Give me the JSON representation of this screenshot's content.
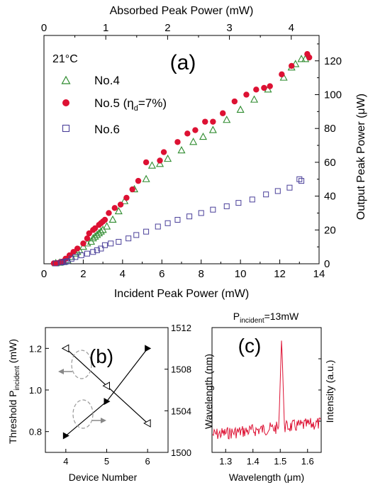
{
  "chart_data": [
    {
      "id": "a",
      "type": "scatter",
      "panel_label": "(a)",
      "annotation": "21°C",
      "xlabel": "Incident Peak Power (mW)",
      "xlim": [
        0,
        14
      ],
      "xticks": [
        0,
        2,
        4,
        6,
        8,
        10,
        12,
        14
      ],
      "top_xlabel": "Absorbed Peak Power (mW)",
      "top_xlim": [
        0,
        4.45
      ],
      "top_xticks": [
        0,
        1,
        2,
        3,
        4
      ],
      "ylabel": "Output Peak Power (μW)",
      "ylim": [
        0,
        135
      ],
      "yticks": [
        0,
        20,
        40,
        60,
        80,
        100,
        120
      ],
      "y_axis_side": "right",
      "legend_position": "top-left",
      "series": [
        {
          "name_main": "No.4",
          "name_sub": "",
          "name_tail": "",
          "marker": "open-triangle",
          "color": "#2e8b2e",
          "points": [
            [
              0.6,
              0.3
            ],
            [
              0.8,
              0.6
            ],
            [
              1.0,
              1.0
            ],
            [
              1.2,
              2
            ],
            [
              1.4,
              4
            ],
            [
              1.6,
              6
            ],
            [
              1.7,
              7
            ],
            [
              1.8,
              8
            ],
            [
              2.0,
              10
            ],
            [
              2.2,
              12
            ],
            [
              2.4,
              13
            ],
            [
              2.5,
              15
            ],
            [
              2.6,
              16
            ],
            [
              2.7,
              17
            ],
            [
              2.8,
              18
            ],
            [
              2.9,
              19
            ],
            [
              3.0,
              20
            ],
            [
              3.2,
              22
            ],
            [
              3.5,
              26
            ],
            [
              3.8,
              31
            ],
            [
              4.1,
              37
            ],
            [
              4.6,
              44
            ],
            [
              5.2,
              50
            ],
            [
              5.5,
              58
            ],
            [
              5.9,
              59
            ],
            [
              6.3,
              62
            ],
            [
              7.0,
              67
            ],
            [
              7.6,
              72
            ],
            [
              8.1,
              75
            ],
            [
              8.6,
              79
            ],
            [
              9.3,
              85
            ],
            [
              10.0,
              91
            ],
            [
              10.7,
              97
            ],
            [
              11.4,
              103
            ],
            [
              12.2,
              110
            ],
            [
              12.6,
              116
            ],
            [
              12.8,
              118
            ],
            [
              13.1,
              121
            ],
            [
              13.3,
              121
            ]
          ]
        },
        {
          "name_main": "No.5 (η",
          "name_sub": "d",
          "name_tail": "=7%)",
          "marker": "filled-circle",
          "color": "#dd1133",
          "points": [
            [
              0.5,
              0.3
            ],
            [
              0.65,
              0.4
            ],
            [
              0.8,
              0.8
            ],
            [
              0.9,
              1.2
            ],
            [
              1.0,
              1.5
            ],
            [
              1.1,
              3
            ],
            [
              1.3,
              5
            ],
            [
              1.5,
              7
            ],
            [
              1.7,
              9
            ],
            [
              2.0,
              12
            ],
            [
              2.2,
              15
            ],
            [
              2.3,
              18
            ],
            [
              2.5,
              20
            ],
            [
              2.6,
              21
            ],
            [
              2.8,
              23
            ],
            [
              2.9,
              24
            ],
            [
              3.0,
              25
            ],
            [
              3.1,
              26
            ],
            [
              3.3,
              30
            ],
            [
              3.6,
              33
            ],
            [
              3.9,
              35
            ],
            [
              4.2,
              39
            ],
            [
              4.5,
              44
            ],
            [
              4.8,
              49
            ],
            [
              5.2,
              60
            ],
            [
              5.9,
              61
            ],
            [
              6.1,
              66
            ],
            [
              6.8,
              72
            ],
            [
              7.3,
              77
            ],
            [
              7.7,
              79
            ],
            [
              8.2,
              84
            ],
            [
              8.6,
              84
            ],
            [
              9.1,
              89
            ],
            [
              9.7,
              96
            ],
            [
              10.3,
              100
            ],
            [
              10.8,
              103
            ],
            [
              11.2,
              104
            ],
            [
              11.5,
              105
            ],
            [
              12.1,
              112
            ],
            [
              12.6,
              117
            ],
            [
              13.4,
              124
            ],
            [
              13.5,
              122
            ]
          ]
        },
        {
          "name_main": "No.6",
          "name_sub": "",
          "name_tail": "",
          "marker": "open-square",
          "color": "#4a3f99",
          "points": [
            [
              0.6,
              0.2
            ],
            [
              0.9,
              0.8
            ],
            [
              1.0,
              1.0
            ],
            [
              1.1,
              1.2
            ],
            [
              1.2,
              1.5
            ],
            [
              1.4,
              3
            ],
            [
              1.6,
              4
            ],
            [
              1.9,
              5
            ],
            [
              2.2,
              6
            ],
            [
              2.5,
              7
            ],
            [
              2.7,
              8
            ],
            [
              2.9,
              9
            ],
            [
              3.1,
              11
            ],
            [
              3.4,
              12
            ],
            [
              3.8,
              13
            ],
            [
              4.3,
              15
            ],
            [
              4.7,
              17
            ],
            [
              5.2,
              19
            ],
            [
              5.8,
              22
            ],
            [
              6.3,
              24
            ],
            [
              6.8,
              26
            ],
            [
              7.4,
              28
            ],
            [
              8.0,
              30
            ],
            [
              8.6,
              32
            ],
            [
              9.3,
              34
            ],
            [
              9.9,
              36
            ],
            [
              10.6,
              38
            ],
            [
              11.3,
              41
            ],
            [
              11.9,
              43
            ],
            [
              12.5,
              45
            ],
            [
              13.0,
              50
            ],
            [
              13.1,
              49
            ]
          ]
        }
      ]
    },
    {
      "id": "b",
      "type": "line",
      "panel_label": "(b)",
      "xlabel": "Device Number",
      "xlim": [
        3.5,
        6.5
      ],
      "xticks": [
        4,
        5,
        6
      ],
      "ylabel_main": "Threshold P",
      "ylabel_sub": "incident",
      "ylabel_tail": " (mW)",
      "ylim": [
        0.7,
        1.3
      ],
      "yticks": [
        0.8,
        1.0,
        1.2
      ],
      "right_ylabel": "Wavelength (nm)",
      "right_ylim": [
        1500,
        1512
      ],
      "right_yticks": [
        1500,
        1504,
        1508,
        1512
      ],
      "series": [
        {
          "axis": "left",
          "marker": "open-triangle-left",
          "color": "#000000",
          "x": [
            4,
            5,
            6
          ],
          "y": [
            1.2,
            1.02,
            0.84
          ]
        },
        {
          "axis": "right",
          "marker": "filled-triangle-right",
          "color": "#000000",
          "x": [
            4,
            5,
            6
          ],
          "y": [
            1501.6,
            1504.9,
            1510.0
          ]
        }
      ]
    },
    {
      "id": "c",
      "type": "line",
      "panel_label": "(c)",
      "title_main": "P",
      "title_sub": "incident",
      "title_tail": "=13mW",
      "xlabel": "Wavelength (μm)",
      "xlim": [
        1.25,
        1.65
      ],
      "xticks": [
        1.3,
        1.4,
        1.5,
        1.6
      ],
      "ylabel": "Intensity (a.u.)",
      "y_axis_side": "right",
      "line_color": "#dd1133",
      "peak_wavelength": 1.505
    }
  ]
}
